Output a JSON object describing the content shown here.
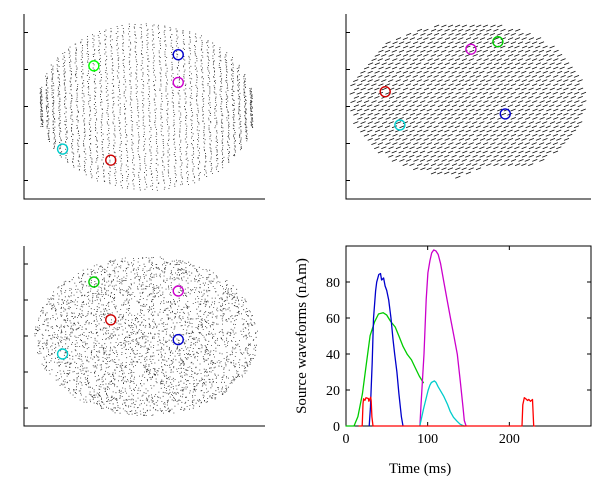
{
  "chart_data": [
    {
      "type": "scatter",
      "panel": "top-left",
      "view": "top",
      "source_markers": [
        {
          "color": "#00ff00",
          "x": 0.29,
          "y": 0.72
        },
        {
          "color": "#0000cc",
          "x": 0.64,
          "y": 0.78
        },
        {
          "color": "#cc00cc",
          "x": 0.64,
          "y": 0.63
        },
        {
          "color": "#00cccc",
          "x": 0.16,
          "y": 0.27
        },
        {
          "color": "#cc0000",
          "x": 0.36,
          "y": 0.21
        }
      ]
    },
    {
      "type": "scatter",
      "panel": "top-right",
      "view": "side",
      "source_markers": [
        {
          "color": "#cc00cc",
          "x": 0.51,
          "y": 0.81
        },
        {
          "color": "#00cc00",
          "x": 0.62,
          "y": 0.85
        },
        {
          "color": "#cc0000",
          "x": 0.16,
          "y": 0.58
        },
        {
          "color": "#0000cc",
          "x": 0.65,
          "y": 0.46
        },
        {
          "color": "#00cccc",
          "x": 0.22,
          "y": 0.4
        }
      ]
    },
    {
      "type": "scatter",
      "panel": "bottom-left",
      "view": "bottom",
      "source_markers": [
        {
          "color": "#00cc00",
          "x": 0.29,
          "y": 0.8
        },
        {
          "color": "#cc00cc",
          "x": 0.64,
          "y": 0.75
        },
        {
          "color": "#cc0000",
          "x": 0.36,
          "y": 0.59
        },
        {
          "color": "#0000cc",
          "x": 0.64,
          "y": 0.48
        },
        {
          "color": "#00cccc",
          "x": 0.16,
          "y": 0.4
        }
      ]
    },
    {
      "type": "line",
      "panel": "bottom-right",
      "xlabel": "Time (ms)",
      "ylabel": "Source waveforms (nAm)",
      "xlim": [
        0,
        300
      ],
      "ylim": [
        0,
        100
      ],
      "xticks": [
        0,
        100,
        200
      ],
      "yticks": [
        0,
        20,
        40,
        60,
        80
      ],
      "grid": false,
      "series": [
        {
          "color": "#00cc00",
          "x": [
            0,
            10,
            15,
            20,
            25,
            30,
            35,
            40,
            45,
            50,
            55,
            60,
            65,
            70,
            75,
            80,
            85,
            90,
            95
          ],
          "y": [
            0,
            0,
            5,
            18,
            35,
            50,
            58,
            62,
            63,
            62,
            58,
            55,
            50,
            44,
            40,
            37,
            32,
            28,
            24
          ]
        },
        {
          "color": "#0000cc",
          "x": [
            28,
            30,
            32,
            34,
            36,
            38,
            40,
            42,
            44,
            46,
            48,
            50,
            52,
            55,
            58,
            60,
            62,
            65,
            68,
            70
          ],
          "y": [
            0,
            10,
            35,
            60,
            75,
            80,
            84,
            85,
            81,
            82,
            78,
            75,
            70,
            60,
            48,
            40,
            30,
            18,
            5,
            0
          ]
        },
        {
          "color": "#cc00cc",
          "x": [
            90,
            92,
            95,
            98,
            100,
            103,
            105,
            108,
            110,
            113,
            116,
            120,
            124,
            128,
            132,
            136,
            140,
            143,
            145,
            147
          ],
          "y": [
            0,
            10,
            40,
            70,
            85,
            92,
            96,
            98,
            97,
            95,
            90,
            80,
            70,
            60,
            50,
            40,
            25,
            10,
            3,
            0
          ]
        },
        {
          "color": "#00cccc",
          "x": [
            90,
            95,
            100,
            103,
            105,
            108,
            110,
            113,
            116,
            120,
            124,
            128,
            132,
            136,
            140,
            144,
            146
          ],
          "y": [
            0,
            10,
            20,
            23,
            24,
            25,
            24,
            22,
            20,
            16,
            12,
            8,
            5,
            3,
            1,
            0,
            0
          ]
        },
        {
          "color": "#ff0000",
          "x": [
            15,
            20,
            21,
            22,
            23,
            25,
            27,
            28,
            29,
            30,
            31,
            32,
            33,
            35,
            215,
            216,
            218,
            220,
            222,
            224,
            226,
            228,
            230,
            232
          ],
          "y": [
            0,
            0,
            12,
            15,
            14,
            16,
            15,
            14,
            15,
            16,
            14,
            5,
            0,
            0,
            0,
            12,
            16,
            15,
            14,
            15,
            14,
            15,
            0,
            0
          ]
        }
      ]
    }
  ]
}
